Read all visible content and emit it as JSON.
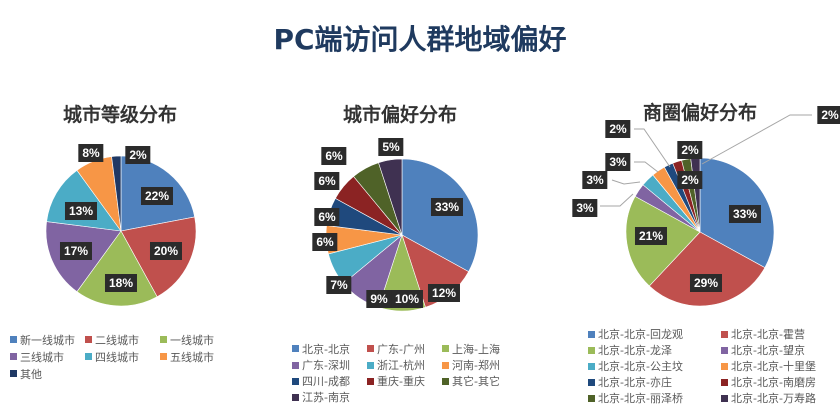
{
  "title": "PC端访问人群地域偏好",
  "chart_data": [
    {
      "type": "pie",
      "title": "城市等级分布",
      "categories": [
        "新一线城市",
        "二线城市",
        "一线城市",
        "三线城市",
        "四线城市",
        "五线城市",
        "其他"
      ],
      "values": [
        22,
        20,
        18,
        17,
        13,
        8,
        2
      ],
      "labels": [
        "22%",
        "20%",
        "18%",
        "17%",
        "13%",
        "8%",
        "2%"
      ],
      "colors": [
        "#4f81bd",
        "#c0504d",
        "#9bbb59",
        "#8064a2",
        "#4bacc6",
        "#f79646",
        "#1f3864"
      ],
      "legend_position": "bottom"
    },
    {
      "type": "pie",
      "title": "城市偏好分布",
      "categories": [
        "北京-北京",
        "广东-广州",
        "上海-上海",
        "广东-深圳",
        "浙江-杭州",
        "河南-郑州",
        "四川-成都",
        "重庆-重庆",
        "其它-其它",
        "江苏-南京"
      ],
      "values": [
        33,
        12,
        10,
        9,
        7,
        6,
        6,
        6,
        6,
        5
      ],
      "labels": [
        "33%",
        "12%",
        "10%",
        "9%",
        "7%",
        "6%",
        "6%",
        "6%",
        "6%",
        "5%"
      ],
      "colors": [
        "#4f81bd",
        "#c0504d",
        "#9bbb59",
        "#8064a2",
        "#4bacc6",
        "#f79646",
        "#1f497d",
        "#8b2323",
        "#4f6228",
        "#3f3151"
      ],
      "legend_position": "bottom"
    },
    {
      "type": "pie",
      "title": "商圈偏好分布",
      "categories": [
        "北京-北京-回龙观",
        "北京-北京-霍营",
        "北京-北京-龙泽",
        "北京-北京-望京",
        "北京-北京-公主坟",
        "北京-北京-十里堡",
        "北京-北京-亦庄",
        "北京-北京-南磨房",
        "北京-北京-丽泽桥",
        "北京-北京-万寿路"
      ],
      "values": [
        33,
        29,
        21,
        3,
        3,
        3,
        2,
        2,
        2,
        2
      ],
      "labels": [
        "33%",
        "29%",
        "21%",
        "3%",
        "3%",
        "3%",
        "2%",
        "2%",
        "2%",
        "2%"
      ],
      "colors": [
        "#4f81bd",
        "#c0504d",
        "#9bbb59",
        "#8064a2",
        "#4bacc6",
        "#f79646",
        "#1f497d",
        "#8b2323",
        "#4f6228",
        "#3f3151"
      ],
      "legend_position": "bottom"
    }
  ]
}
